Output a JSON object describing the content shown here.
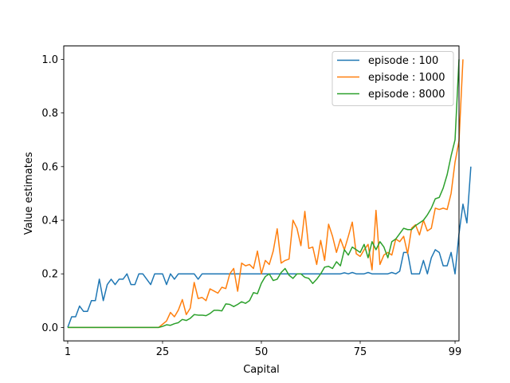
{
  "chart_data": {
    "type": "line",
    "xlabel": "Capital",
    "ylabel": "Value estimates",
    "xlim": [
      0,
      100
    ],
    "ylim": [
      -0.05,
      1.05
    ],
    "x_ticks": [
      1,
      25,
      50,
      75,
      99
    ],
    "y_ticks": [
      "0.0",
      "0.2",
      "0.4",
      "0.6",
      "0.8",
      "1.0"
    ],
    "y_tick_values": [
      0.0,
      0.2,
      0.4,
      0.6,
      0.8,
      1.0
    ],
    "grid": false,
    "legend_position": "top-right",
    "series": [
      {
        "name": "episode : 100",
        "color": "#1f77b4",
        "x_start": 1,
        "values": [
          0.0,
          0.04,
          0.04,
          0.08,
          0.06,
          0.06,
          0.1,
          0.1,
          0.18,
          0.1,
          0.16,
          0.18,
          0.16,
          0.18,
          0.18,
          0.2,
          0.16,
          0.16,
          0.2,
          0.2,
          0.18,
          0.16,
          0.2,
          0.2,
          0.2,
          0.16,
          0.2,
          0.18,
          0.2,
          0.2,
          0.2,
          0.2,
          0.2,
          0.18,
          0.2,
          0.2,
          0.2,
          0.2,
          0.2,
          0.2,
          0.2,
          0.2,
          0.2,
          0.2,
          0.2,
          0.2,
          0.2,
          0.2,
          0.2,
          0.2,
          0.2,
          0.2,
          0.2,
          0.2,
          0.2,
          0.2,
          0.2,
          0.2,
          0.2,
          0.2,
          0.2,
          0.2,
          0.2,
          0.2,
          0.2,
          0.2,
          0.2,
          0.2,
          0.2,
          0.2,
          0.204,
          0.2,
          0.205,
          0.2,
          0.2,
          0.2,
          0.205,
          0.2,
          0.2,
          0.2,
          0.2,
          0.2,
          0.205,
          0.2,
          0.21,
          0.28,
          0.28,
          0.2,
          0.2,
          0.2,
          0.25,
          0.2,
          0.26,
          0.29,
          0.28,
          0.23,
          0.23,
          0.28,
          0.2,
          0.35,
          0.46,
          0.39,
          0.6
        ]
      },
      {
        "name": "episode : 1000",
        "color": "#ff7f0e",
        "x_start": 1,
        "values": [
          0.0,
          0.0,
          0.0,
          0.0,
          0.0,
          0.0,
          0.0,
          0.0,
          0.0,
          0.0,
          0.0,
          0.0,
          0.0,
          0.0,
          0.0,
          0.0,
          0.0,
          0.0,
          0.0,
          0.0,
          0.0,
          0.0,
          0.0,
          0.0,
          0.012,
          0.024,
          0.056,
          0.04,
          0.065,
          0.104,
          0.048,
          0.072,
          0.168,
          0.108,
          0.112,
          0.1,
          0.144,
          0.136,
          0.128,
          0.15,
          0.145,
          0.2,
          0.22,
          0.135,
          0.24,
          0.23,
          0.235,
          0.22,
          0.285,
          0.2,
          0.25,
          0.235,
          0.285,
          0.368,
          0.24,
          0.25,
          0.255,
          0.4,
          0.37,
          0.305,
          0.433,
          0.295,
          0.3,
          0.235,
          0.325,
          0.25,
          0.385,
          0.34,
          0.28,
          0.33,
          0.29,
          0.34,
          0.393,
          0.275,
          0.265,
          0.29,
          0.31,
          0.215,
          0.437,
          0.235,
          0.27,
          0.28,
          0.27,
          0.33,
          0.32,
          0.34,
          0.275,
          0.37,
          0.383,
          0.345,
          0.4,
          0.36,
          0.37,
          0.445,
          0.44,
          0.445,
          0.44,
          0.5,
          0.617,
          0.695,
          1.0
        ]
      },
      {
        "name": "episode : 8000",
        "color": "#2ca02c",
        "x_start": 1,
        "values": [
          0.0,
          0.0,
          0.0,
          0.0,
          0.0,
          0.0,
          0.0,
          0.0,
          0.0,
          0.0,
          0.0,
          0.0,
          0.0,
          0.0,
          0.0,
          0.0,
          0.0,
          0.0,
          0.0,
          0.0,
          0.0,
          0.0,
          0.0,
          0.0,
          0.004,
          0.01,
          0.008,
          0.014,
          0.018,
          0.03,
          0.026,
          0.034,
          0.048,
          0.046,
          0.046,
          0.044,
          0.052,
          0.064,
          0.064,
          0.062,
          0.088,
          0.086,
          0.078,
          0.086,
          0.096,
          0.09,
          0.1,
          0.13,
          0.126,
          0.165,
          0.19,
          0.2,
          0.175,
          0.18,
          0.205,
          0.22,
          0.195,
          0.183,
          0.2,
          0.2,
          0.187,
          0.183,
          0.164,
          0.18,
          0.2,
          0.225,
          0.228,
          0.22,
          0.245,
          0.23,
          0.29,
          0.27,
          0.3,
          0.29,
          0.28,
          0.31,
          0.26,
          0.32,
          0.29,
          0.32,
          0.3,
          0.26,
          0.32,
          0.33,
          0.35,
          0.37,
          0.365,
          0.365,
          0.38,
          0.39,
          0.4,
          0.42,
          0.445,
          0.48,
          0.485,
          0.52,
          0.57,
          0.64,
          0.7,
          1.0
        ]
      }
    ]
  }
}
